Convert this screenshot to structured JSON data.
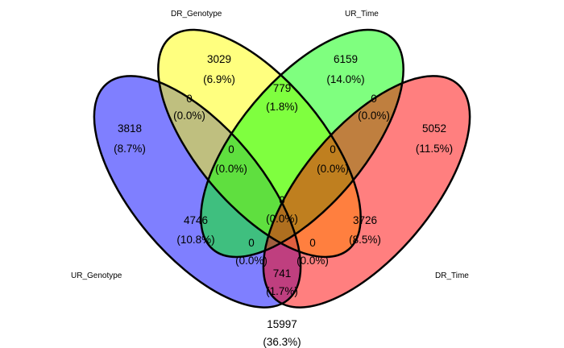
{
  "sets": [
    {
      "key": "ur_genotype",
      "name": "UR_Genotype",
      "color": "#0000FF"
    },
    {
      "key": "dr_genotype",
      "name": "DR_Genotype",
      "color": "#FFFF00"
    },
    {
      "key": "ur_time",
      "name": "UR_Time",
      "color": "#00FF00"
    },
    {
      "key": "dr_time",
      "name": "DR_Time",
      "color": "#FF0000"
    }
  ],
  "regions": [
    {
      "key": "only_ur_genotype",
      "count": "3818",
      "pct": "(8.7%)"
    },
    {
      "key": "only_dr_genotype",
      "count": "3029",
      "pct": "(6.9%)"
    },
    {
      "key": "only_ur_time",
      "count": "6159",
      "pct": "(14.0%)"
    },
    {
      "key": "only_dr_time",
      "count": "5052",
      "pct": "(11.5%)"
    },
    {
      "key": "ur_genotype_dr_genotype",
      "count": "0",
      "pct": "(0.0%)"
    },
    {
      "key": "dr_genotype_ur_time",
      "count": "779",
      "pct": "(1.8%)"
    },
    {
      "key": "ur_time_dr_time",
      "count": "0",
      "pct": "(0.0%)"
    },
    {
      "key": "ur_genotype_dr_genotype_ur_time",
      "count": "0",
      "pct": "(0.0%)"
    },
    {
      "key": "dr_genotype_ur_time_dr_time",
      "count": "0",
      "pct": "(0.0%)"
    },
    {
      "key": "all_four",
      "count": "0",
      "pct": "(0.0%)"
    },
    {
      "key": "ur_genotype_ur_time",
      "count": "4746",
      "pct": "(10.8%)"
    },
    {
      "key": "dr_genotype_dr_time",
      "count": "3726",
      "pct": "(8.5%)"
    },
    {
      "key": "ur_genotype_ur_time_dr_time",
      "count": "0",
      "pct": "(0.0%)"
    },
    {
      "key": "ur_genotype_dr_genotype_dr_time",
      "count": "0",
      "pct": "(0.0%)"
    },
    {
      "key": "ur_genotype_dr_time",
      "count": "741",
      "pct": "(1.7%)"
    },
    {
      "key": "outside",
      "count": "15997",
      "pct": "(36.3%)"
    }
  ]
}
